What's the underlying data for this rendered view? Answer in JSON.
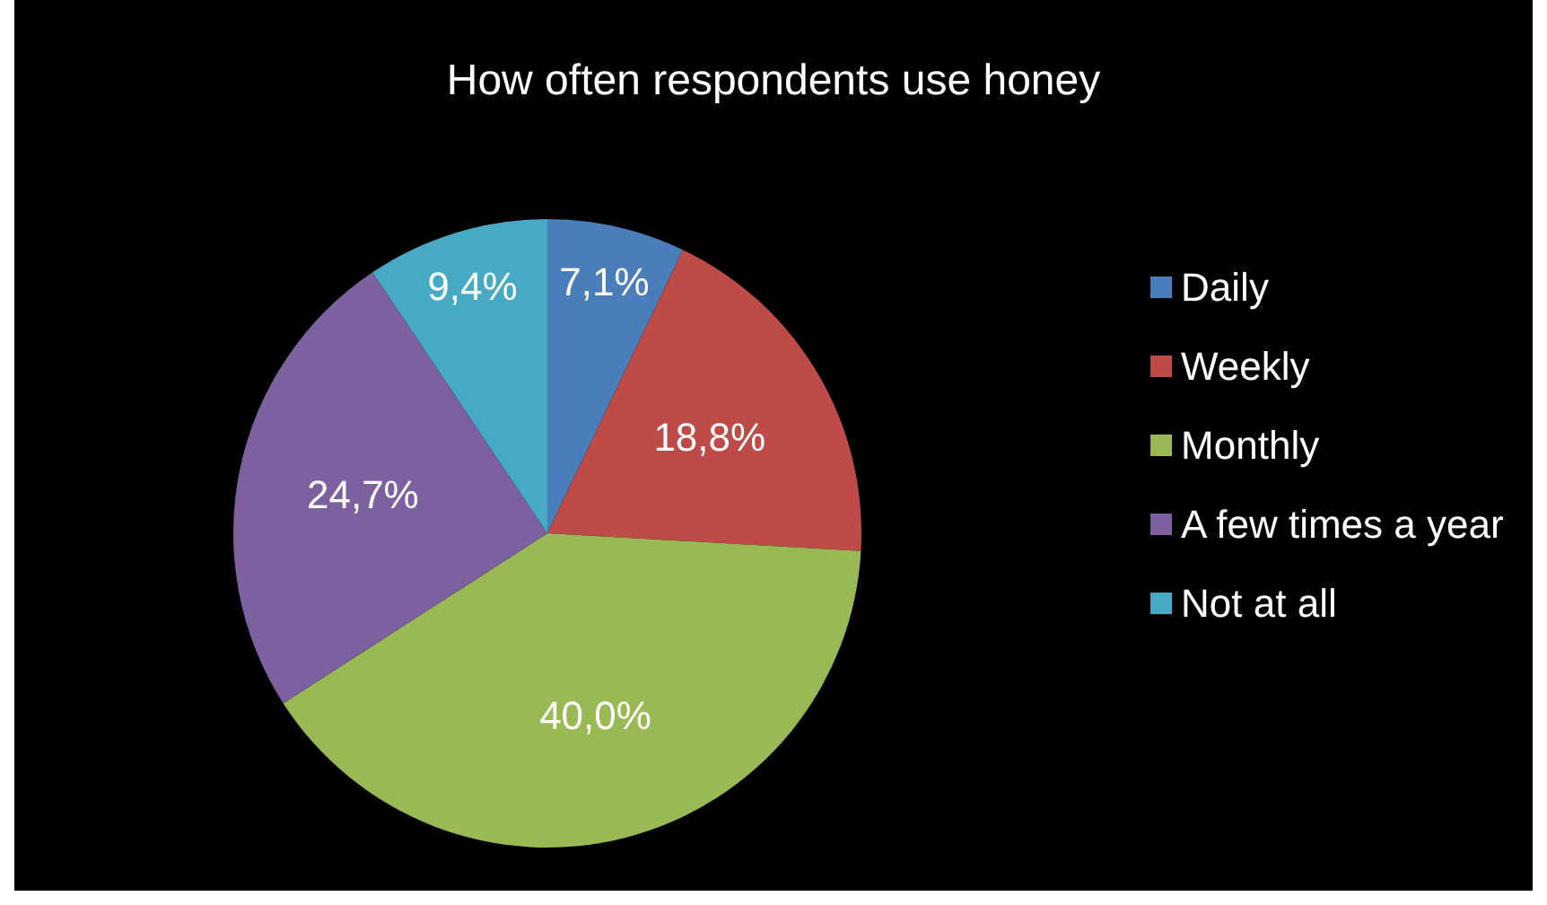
{
  "chart_data": {
    "type": "pie",
    "title": "How often respondents use honey",
    "categories": [
      "Daily",
      "Weekly",
      "Monthly",
      "A few times a year",
      "Not at all"
    ],
    "values": [
      7.1,
      18.8,
      40.0,
      24.7,
      9.4
    ],
    "colors": [
      "#4a7ebb",
      "#be4b48",
      "#98b954",
      "#7d60a0",
      "#46aac5"
    ],
    "value_labels": [
      "7,1%",
      "18,8%",
      "40,0%",
      "24,7%",
      "9,4%"
    ],
    "legend": "right"
  }
}
